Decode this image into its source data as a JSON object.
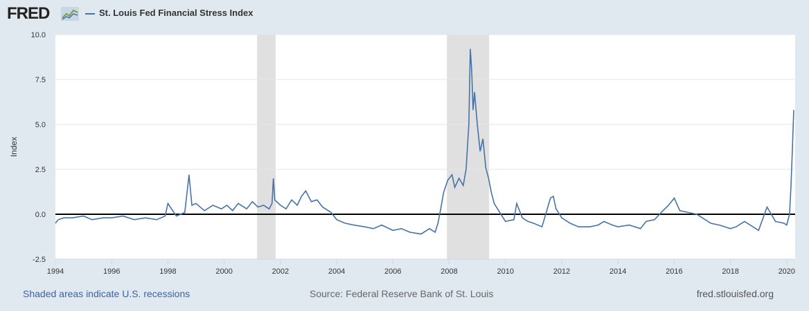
{
  "header": {
    "logo_text": "FRED",
    "logo_icon": "line-chart-icon",
    "series_title": "St. Louis Fed Financial Stress Index"
  },
  "footer": {
    "recession_note": "Shaded areas indicate U.S. recessions",
    "source": "Source: Federal Reserve Bank of St. Louis",
    "site": "fred.stlouisfed.org"
  },
  "colors": {
    "series": "#4572a7",
    "recession": "#e0e0e0",
    "background": "#e1e9f0",
    "zero_line": "#000000"
  },
  "chart_data": {
    "type": "line",
    "title": "St. Louis Fed Financial Stress Index",
    "ylabel": "Index",
    "xlabel": "",
    "ylim": [
      -2.5,
      10.0
    ],
    "xlim": [
      1994.0,
      2020.3
    ],
    "yticks": [
      "-2.5",
      "0.0",
      "2.5",
      "5.0",
      "7.5",
      "10.0"
    ],
    "xticks": [
      "1994",
      "1996",
      "1998",
      "2000",
      "2002",
      "2004",
      "2006",
      "2008",
      "2010",
      "2012",
      "2014",
      "2016",
      "2018",
      "2020"
    ],
    "zero_line": 0,
    "grid": true,
    "legend": "top-left",
    "recessions": [
      [
        2001.17,
        2001.83
      ],
      [
        2007.92,
        2009.42
      ]
    ],
    "series": [
      {
        "name": "St. Louis Fed Financial Stress Index",
        "x": [
          1994.0,
          1994.1,
          1994.3,
          1994.6,
          1995.0,
          1995.3,
          1995.7,
          1996.0,
          1996.4,
          1996.8,
          1997.2,
          1997.6,
          1997.9,
          1998.0,
          1998.3,
          1998.6,
          1998.75,
          1998.85,
          1999.0,
          1999.3,
          1999.6,
          1999.9,
          2000.1,
          2000.3,
          2000.5,
          2000.8,
          2001.0,
          2001.2,
          2001.4,
          2001.6,
          2001.7,
          2001.75,
          2001.8,
          2002.0,
          2002.2,
          2002.4,
          2002.6,
          2002.75,
          2002.9,
          2003.1,
          2003.3,
          2003.5,
          2003.8,
          2004.0,
          2004.3,
          2004.6,
          2005.0,
          2005.3,
          2005.6,
          2006.0,
          2006.3,
          2006.6,
          2007.0,
          2007.3,
          2007.5,
          2007.6,
          2007.7,
          2007.8,
          2007.95,
          2008.1,
          2008.2,
          2008.35,
          2008.5,
          2008.6,
          2008.7,
          2008.75,
          2008.8,
          2008.85,
          2008.9,
          2009.0,
          2009.1,
          2009.2,
          2009.3,
          2009.4,
          2009.5,
          2009.6,
          2009.8,
          2010.0,
          2010.3,
          2010.4,
          2010.6,
          2010.8,
          2011.0,
          2011.3,
          2011.6,
          2011.7,
          2011.8,
          2012.0,
          2012.3,
          2012.6,
          2013.0,
          2013.3,
          2013.5,
          2013.8,
          2014.0,
          2014.4,
          2014.8,
          2015.0,
          2015.3,
          2015.6,
          2015.8,
          2016.0,
          2016.2,
          2016.5,
          2016.8,
          2017.0,
          2017.3,
          2017.6,
          2018.0,
          2018.2,
          2018.5,
          2018.8,
          2019.0,
          2019.3,
          2019.6,
          2019.9,
          2020.0,
          2020.1,
          2020.15,
          2020.2,
          2020.25
        ],
        "values": [
          -0.5,
          -0.3,
          -0.2,
          -0.2,
          -0.1,
          -0.3,
          -0.2,
          -0.2,
          -0.1,
          -0.3,
          -0.2,
          -0.3,
          -0.1,
          0.6,
          -0.1,
          0.1,
          2.2,
          0.5,
          0.6,
          0.2,
          0.5,
          0.3,
          0.5,
          0.2,
          0.6,
          0.3,
          0.7,
          0.4,
          0.5,
          0.3,
          0.6,
          2.0,
          0.8,
          0.5,
          0.3,
          0.8,
          0.5,
          1.0,
          1.3,
          0.7,
          0.8,
          0.4,
          0.1,
          -0.3,
          -0.5,
          -0.6,
          -0.7,
          -0.8,
          -0.6,
          -0.9,
          -0.8,
          -1.0,
          -1.1,
          -0.8,
          -1.0,
          -0.5,
          0.3,
          1.2,
          1.9,
          2.2,
          1.5,
          2.0,
          1.6,
          2.5,
          5.0,
          9.2,
          8.0,
          5.8,
          6.8,
          5.0,
          3.5,
          4.2,
          2.6,
          2.0,
          1.2,
          0.6,
          0.1,
          -0.4,
          -0.3,
          0.6,
          -0.2,
          -0.4,
          -0.5,
          -0.7,
          0.9,
          1.0,
          0.3,
          -0.2,
          -0.5,
          -0.7,
          -0.7,
          -0.6,
          -0.4,
          -0.6,
          -0.7,
          -0.6,
          -0.8,
          -0.4,
          -0.3,
          0.2,
          0.5,
          0.9,
          0.2,
          0.1,
          0.0,
          -0.2,
          -0.5,
          -0.6,
          -0.8,
          -0.7,
          -0.4,
          -0.7,
          -0.9,
          0.4,
          -0.4,
          -0.5,
          -0.6,
          0.0,
          1.5,
          3.5,
          5.8
        ]
      }
    ]
  }
}
